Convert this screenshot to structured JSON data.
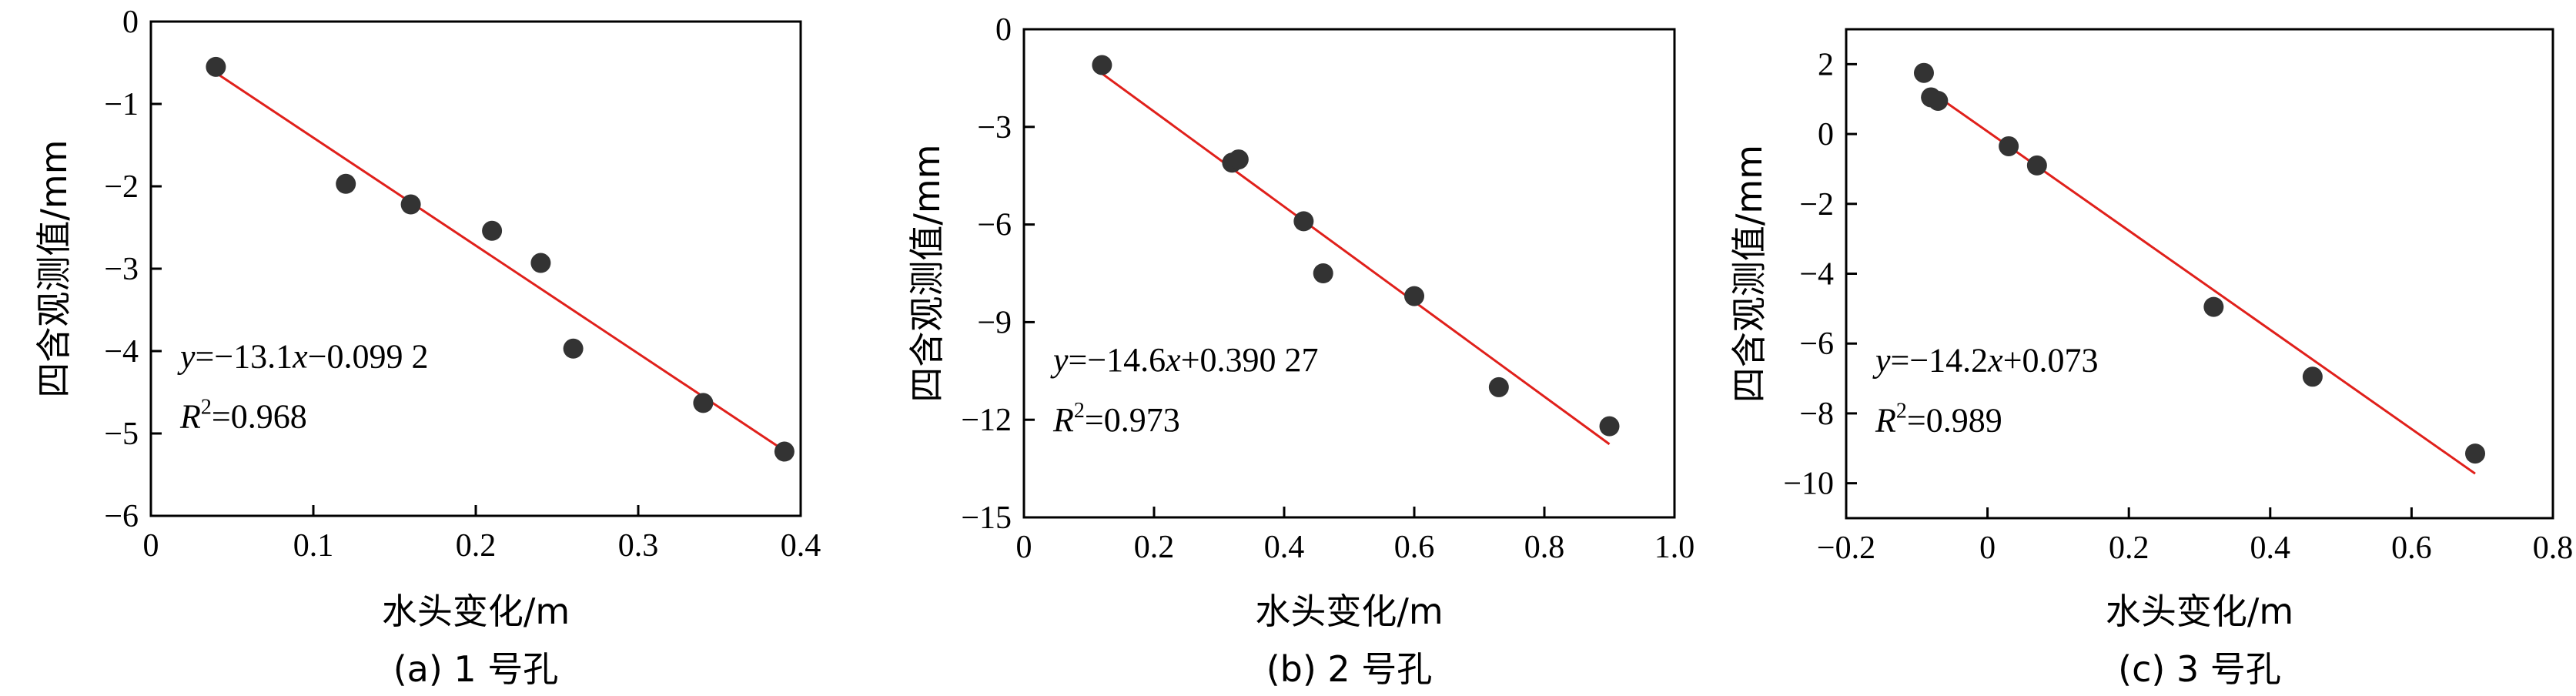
{
  "chart_data": [
    {
      "type": "scatter",
      "caption": "(a) 1 号孔",
      "xlabel": "水头变化/m",
      "ylabel": "四含观测值/mm",
      "xlim": [
        0,
        0.4
      ],
      "ylim": [
        -6,
        0
      ],
      "xticks": [
        0,
        0.1,
        0.2,
        0.3,
        0.4
      ],
      "xtick_labels": [
        "0",
        "0.1",
        "0.2",
        "0.3",
        "0.4"
      ],
      "yticks": [
        -6,
        -5,
        -4,
        -3,
        -2,
        -1,
        0
      ],
      "ytick_labels": [
        "−6",
        "−5",
        "−4",
        "−3",
        "−2",
        "−1",
        "0"
      ],
      "points": [
        {
          "x": 0.04,
          "y": -0.55
        },
        {
          "x": 0.12,
          "y": -1.97
        },
        {
          "x": 0.16,
          "y": -2.22
        },
        {
          "x": 0.21,
          "y": -2.54
        },
        {
          "x": 0.24,
          "y": -2.93
        },
        {
          "x": 0.26,
          "y": -3.97
        },
        {
          "x": 0.34,
          "y": -4.63
        },
        {
          "x": 0.39,
          "y": -5.22
        }
      ],
      "fit": {
        "slope": -13.1,
        "intercept": -0.0992,
        "x_range": [
          0.04,
          0.39
        ]
      },
      "equation": {
        "y": "y",
        "rest": "=−13.1",
        "x": "x",
        "tail": "−0.099 2"
      },
      "r2": {
        "r": "R",
        "sup": "2",
        "value": "=0.968"
      },
      "grid": false,
      "colors": {
        "points": "#333333",
        "fit_line": "#e0201b"
      }
    },
    {
      "type": "scatter",
      "caption": "(b) 2 号孔",
      "xlabel": "水头变化/m",
      "ylabel": "四含观测值/mm",
      "xlim": [
        0,
        1.0
      ],
      "ylim": [
        -15,
        0
      ],
      "xticks": [
        0,
        0.2,
        0.4,
        0.6,
        0.8,
        1.0
      ],
      "xtick_labels": [
        "0",
        "0.2",
        "0.4",
        "0.6",
        "0.8",
        "1.0"
      ],
      "yticks": [
        -15,
        -12,
        -9,
        -6,
        -3,
        0
      ],
      "ytick_labels": [
        "−15",
        "−12",
        "−9",
        "−6",
        "−3",
        "0"
      ],
      "points": [
        {
          "x": 0.12,
          "y": -1.1
        },
        {
          "x": 0.32,
          "y": -4.1
        },
        {
          "x": 0.33,
          "y": -4.0
        },
        {
          "x": 0.43,
          "y": -5.9
        },
        {
          "x": 0.46,
          "y": -7.5
        },
        {
          "x": 0.6,
          "y": -8.2
        },
        {
          "x": 0.73,
          "y": -11.0
        },
        {
          "x": 0.9,
          "y": -12.2
        }
      ],
      "fit": {
        "slope": -14.6,
        "intercept": 0.39027,
        "x_range": [
          0.12,
          0.9
        ]
      },
      "equation": {
        "y": "y",
        "rest": "=−14.6",
        "x": "x",
        "tail": "+0.390 27"
      },
      "r2": {
        "r": "R",
        "sup": "2",
        "value": "=0.973"
      },
      "grid": false,
      "colors": {
        "points": "#333333",
        "fit_line": "#e0201b"
      }
    },
    {
      "type": "scatter",
      "caption": "(c) 3 号孔",
      "xlabel": "水头变化/m",
      "ylabel": "四含观测值/mm",
      "xlim": [
        -0.2,
        0.8
      ],
      "ylim": [
        -11,
        3
      ],
      "xticks": [
        -0.2,
        0,
        0.2,
        0.4,
        0.6,
        0.8
      ],
      "xtick_labels": [
        "−0.2",
        "0",
        "0.2",
        "0.4",
        "0.6",
        "0.8"
      ],
      "yticks": [
        -10,
        -8,
        -6,
        -4,
        -2,
        0,
        2
      ],
      "ytick_labels": [
        "−10",
        "−8",
        "−6",
        "−4",
        "−2",
        "0",
        "2"
      ],
      "points": [
        {
          "x": -0.09,
          "y": 1.75
        },
        {
          "x": -0.08,
          "y": 1.05
        },
        {
          "x": -0.07,
          "y": 0.95
        },
        {
          "x": 0.03,
          "y": -0.35
        },
        {
          "x": 0.07,
          "y": -0.9
        },
        {
          "x": 0.32,
          "y": -4.95
        },
        {
          "x": 0.46,
          "y": -6.95
        },
        {
          "x": 0.69,
          "y": -9.15
        }
      ],
      "fit": {
        "slope": -14.2,
        "intercept": 0.073,
        "x_range": [
          -0.08,
          0.69
        ]
      },
      "equation": {
        "y": "y",
        "rest": "=−14.2",
        "x": "x",
        "tail": "+0.073"
      },
      "r2": {
        "r": "R",
        "sup": "2",
        "value": "=0.989"
      },
      "grid": false,
      "colors": {
        "points": "#333333",
        "fit_line": "#e0201b"
      }
    }
  ]
}
